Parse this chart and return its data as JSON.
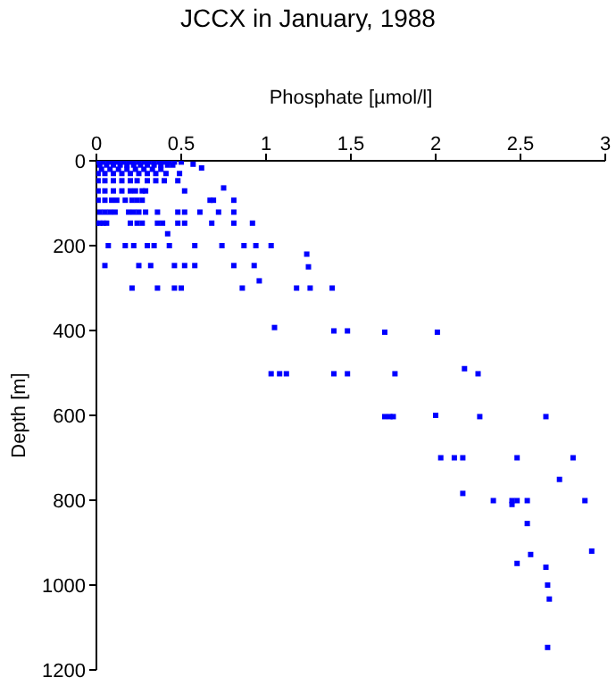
{
  "chart_data": {
    "type": "scatter",
    "title": "JCCX in January, 1988",
    "xlabel": "Phosphate [µmol/l]",
    "ylabel": "Depth [m]",
    "xlim": [
      0,
      3
    ],
    "xticks": [
      0,
      0.5,
      1,
      1.5,
      2,
      2.5,
      3
    ],
    "ylim": [
      1200,
      0
    ],
    "yticks": [
      0,
      200,
      400,
      600,
      800,
      1000,
      1200
    ],
    "grid": false,
    "legend": false,
    "marker": "square",
    "series": [
      {
        "color": "#0000ff",
        "x": [
          0.01,
          0.04,
          0.07,
          0.1,
          0.13,
          0.16,
          0.19,
          0.22,
          0.25,
          0.28,
          0.31,
          0.34,
          0.37,
          0.4,
          0.43,
          0.46,
          0.5,
          0.02,
          0.06,
          0.1,
          0.14,
          0.18,
          0.22,
          0.26,
          0.3,
          0.34,
          0.38,
          0.42,
          0.45,
          0.57,
          0.62,
          0.03,
          0.08,
          0.13,
          0.18,
          0.23,
          0.28,
          0.33,
          0.38,
          0.01,
          0.05,
          0.1,
          0.15,
          0.2,
          0.25,
          0.3,
          0.35,
          0.41,
          0.49,
          0.01,
          0.05,
          0.1,
          0.15,
          0.2,
          0.24,
          0.3,
          0.35,
          0.4,
          0.48,
          0.01,
          0.05,
          0.1,
          0.15,
          0.2,
          0.23,
          0.27,
          0.29,
          0.52,
          0.75,
          0.01,
          0.05,
          0.09,
          0.12,
          0.17,
          0.21,
          0.24,
          0.27,
          0.67,
          0.69,
          0.81,
          0.02,
          0.05,
          0.08,
          0.11,
          0.19,
          0.22,
          0.25,
          0.29,
          0.36,
          0.48,
          0.52,
          0.61,
          0.72,
          0.81,
          0.0,
          0.02,
          0.04,
          0.06,
          0.2,
          0.24,
          0.27,
          0.36,
          0.39,
          0.48,
          0.52,
          0.68,
          0.81,
          0.92,
          0.42,
          0.07,
          0.17,
          0.22,
          0.3,
          0.34,
          0.43,
          0.58,
          0.74,
          0.87,
          0.94,
          1.03,
          1.24,
          1.25,
          0.05,
          0.25,
          0.32,
          0.46,
          0.52,
          0.58,
          0.81,
          0.93,
          0.96,
          0.21,
          0.36,
          0.46,
          0.5,
          0.86,
          1.18,
          1.26,
          1.39,
          1.05,
          1.4,
          1.48,
          1.7,
          2.01,
          1.03,
          1.08,
          1.12,
          1.4,
          1.48,
          1.76,
          2.17,
          2.25,
          1.7,
          1.73,
          1.75,
          2.0,
          2.26,
          2.65,
          2.03,
          2.11,
          2.16,
          2.48,
          2.81,
          2.73,
          2.16,
          2.34,
          2.45,
          2.48,
          2.54,
          2.88,
          2.45,
          2.54,
          2.92,
          2.56,
          2.48,
          2.65,
          2.66,
          2.67,
          2.66
        ],
        "values": [
          3,
          3,
          3,
          3,
          3,
          3,
          3,
          3,
          3,
          3,
          3,
          3,
          3,
          3,
          3,
          3,
          3,
          10,
          10,
          10,
          10,
          10,
          10,
          10,
          10,
          10,
          10,
          10,
          10,
          8,
          17,
          20,
          20,
          20,
          20,
          20,
          20,
          20,
          20,
          30,
          30,
          30,
          30,
          30,
          30,
          30,
          30,
          30,
          30,
          47,
          47,
          47,
          47,
          47,
          47,
          47,
          47,
          47,
          47,
          71,
          71,
          71,
          71,
          71,
          71,
          71,
          71,
          71,
          64,
          93,
          93,
          93,
          93,
          93,
          93,
          93,
          93,
          93,
          93,
          93,
          121,
          121,
          121,
          121,
          121,
          121,
          121,
          121,
          121,
          121,
          121,
          121,
          121,
          121,
          147,
          147,
          147,
          147,
          147,
          147,
          147,
          147,
          147,
          147,
          147,
          147,
          147,
          147,
          172,
          200,
          200,
          200,
          200,
          200,
          200,
          200,
          200,
          200,
          200,
          200,
          220,
          250,
          247,
          247,
          247,
          247,
          247,
          247,
          247,
          247,
          283,
          300,
          300,
          300,
          300,
          300,
          300,
          300,
          300,
          393,
          401,
          401,
          404,
          404,
          502,
          502,
          502,
          502,
          502,
          502,
          490,
          502,
          603,
          603,
          603,
          600,
          603,
          603,
          700,
          700,
          700,
          700,
          700,
          751,
          784,
          801,
          801,
          801,
          801,
          801,
          810,
          855,
          920,
          928,
          949,
          958,
          1000,
          1033,
          1147
        ]
      }
    ]
  }
}
